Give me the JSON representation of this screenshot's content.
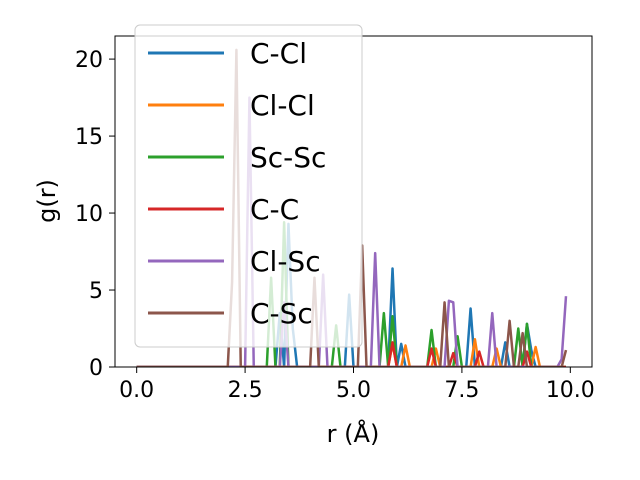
{
  "chart_data": {
    "type": "line",
    "xlabel": "r (Å)",
    "ylabel": "g(r)",
    "xlim": [
      -0.5,
      10.5
    ],
    "ylim": [
      0,
      21.5
    ],
    "xticks": [
      0.0,
      2.5,
      5.0,
      7.5,
      10.0
    ],
    "xtick_labels": [
      "0.0",
      "2.5",
      "5.0",
      "7.5",
      "10.0"
    ],
    "yticks": [
      0,
      5,
      10,
      15,
      20
    ],
    "ytick_labels": [
      "0",
      "5",
      "10",
      "15",
      "20"
    ],
    "grid": false,
    "legend_position": "upper-left",
    "series": [
      {
        "name": "C-Cl",
        "color": "#1f77b4",
        "peaks": [
          [
            3.3,
            3.5
          ],
          [
            3.5,
            9.3
          ],
          [
            3.6,
            2.5
          ],
          [
            4.9,
            4.7
          ],
          [
            5.9,
            6.4
          ],
          [
            6.1,
            1.5
          ],
          [
            7.7,
            3.8
          ],
          [
            8.5,
            1.6
          ],
          [
            9.0,
            2.8
          ],
          [
            9.1,
            1.1
          ]
        ]
      },
      {
        "name": "Cl-Cl",
        "color": "#ff7f0e",
        "peaks": [
          [
            5.9,
            1.5
          ],
          [
            6.2,
            1.4
          ],
          [
            6.9,
            1.2
          ],
          [
            7.8,
            1.8
          ],
          [
            8.3,
            1.2
          ],
          [
            9.2,
            1.3
          ]
        ]
      },
      {
        "name": "Sc-Sc",
        "color": "#2ca02c",
        "peaks": [
          [
            3.1,
            5.8
          ],
          [
            3.4,
            9.4
          ],
          [
            4.6,
            2.7
          ],
          [
            5.7,
            3.5
          ],
          [
            5.9,
            3.3
          ],
          [
            6.8,
            2.4
          ],
          [
            7.4,
            2.0
          ],
          [
            8.8,
            2.5
          ],
          [
            9.0,
            2.8
          ]
        ]
      },
      {
        "name": "C-C",
        "color": "#d62728",
        "peaks": [
          [
            5.9,
            1.6
          ],
          [
            6.8,
            1.2
          ],
          [
            7.3,
            0.9
          ],
          [
            7.9,
            1.0
          ],
          [
            9.0,
            1.0
          ]
        ]
      },
      {
        "name": "Cl-Sc",
        "color": "#9467bd",
        "peaks": [
          [
            2.6,
            17.5
          ],
          [
            3.4,
            4.2
          ],
          [
            4.3,
            6.0
          ],
          [
            5.5,
            7.4
          ],
          [
            7.2,
            4.3
          ],
          [
            7.3,
            4.2
          ],
          [
            8.2,
            3.5
          ],
          [
            9.8,
            0.5
          ],
          [
            9.9,
            4.6
          ]
        ]
      },
      {
        "name": "C-Sc",
        "color": "#8c564b",
        "peaks": [
          [
            2.2,
            5.5
          ],
          [
            2.3,
            20.6
          ],
          [
            4.1,
            5.8
          ],
          [
            5.2,
            7.9
          ],
          [
            7.1,
            4.2
          ],
          [
            8.6,
            3.0
          ],
          [
            8.9,
            2.2
          ],
          [
            9.9,
            1.1
          ]
        ]
      }
    ]
  }
}
